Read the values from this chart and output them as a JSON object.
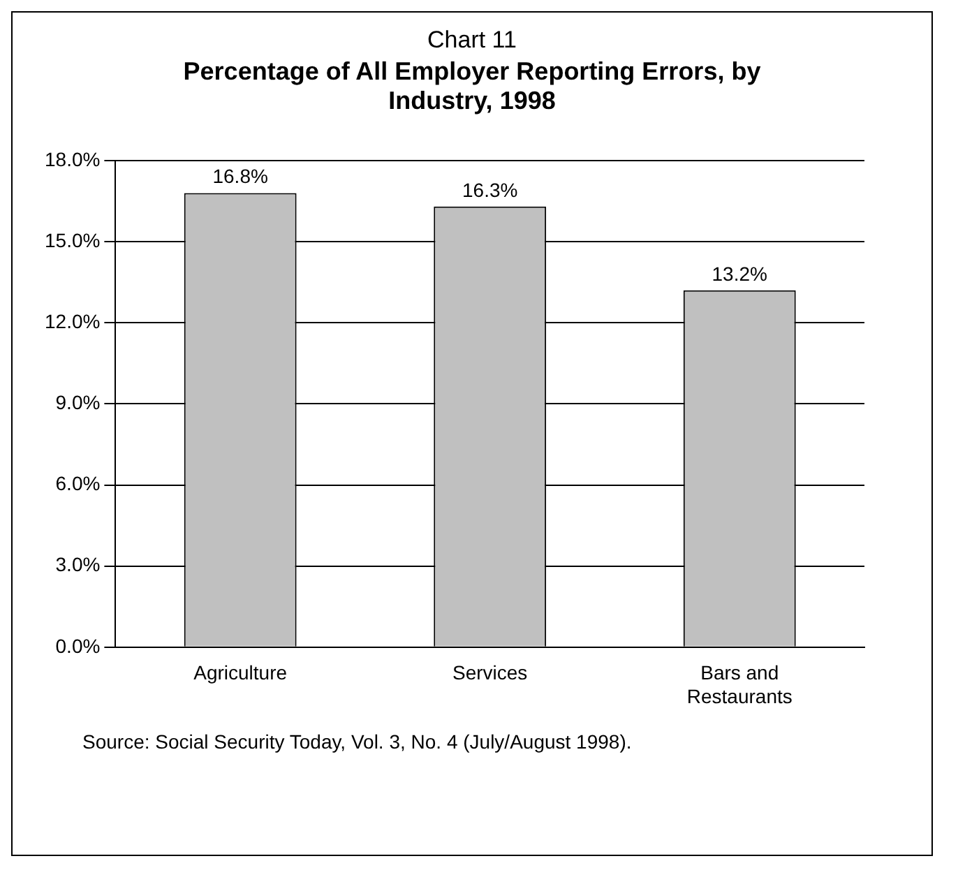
{
  "chart_data": {
    "type": "bar",
    "title": "Chart 11",
    "subtitle": "Percentage of All Employer Reporting Errors, by Industry, 1998",
    "categories": [
      "Agriculture",
      "Services",
      "Bars and Restaurants"
    ],
    "values": [
      16.8,
      16.3,
      13.2
    ],
    "color": "#c0c0c0",
    "value_labels": [
      "16.8%",
      "16.3%",
      "13.2%"
    ],
    "ylim": [
      0,
      18
    ],
    "yticks": [
      {
        "value": 0,
        "label": "0.0%"
      },
      {
        "value": 3,
        "label": "3.0%"
      },
      {
        "value": 6,
        "label": "6.0%"
      },
      {
        "value": 9,
        "label": "9.0%"
      },
      {
        "value": 12,
        "label": "12.0%"
      },
      {
        "value": 15,
        "label": "15.0%"
      },
      {
        "value": 18,
        "label": "18.0%"
      }
    ],
    "grid": "y",
    "annotations": [
      "Source: Social Security Today, Vol. 3, No. 4 (July/August 1998)."
    ]
  }
}
